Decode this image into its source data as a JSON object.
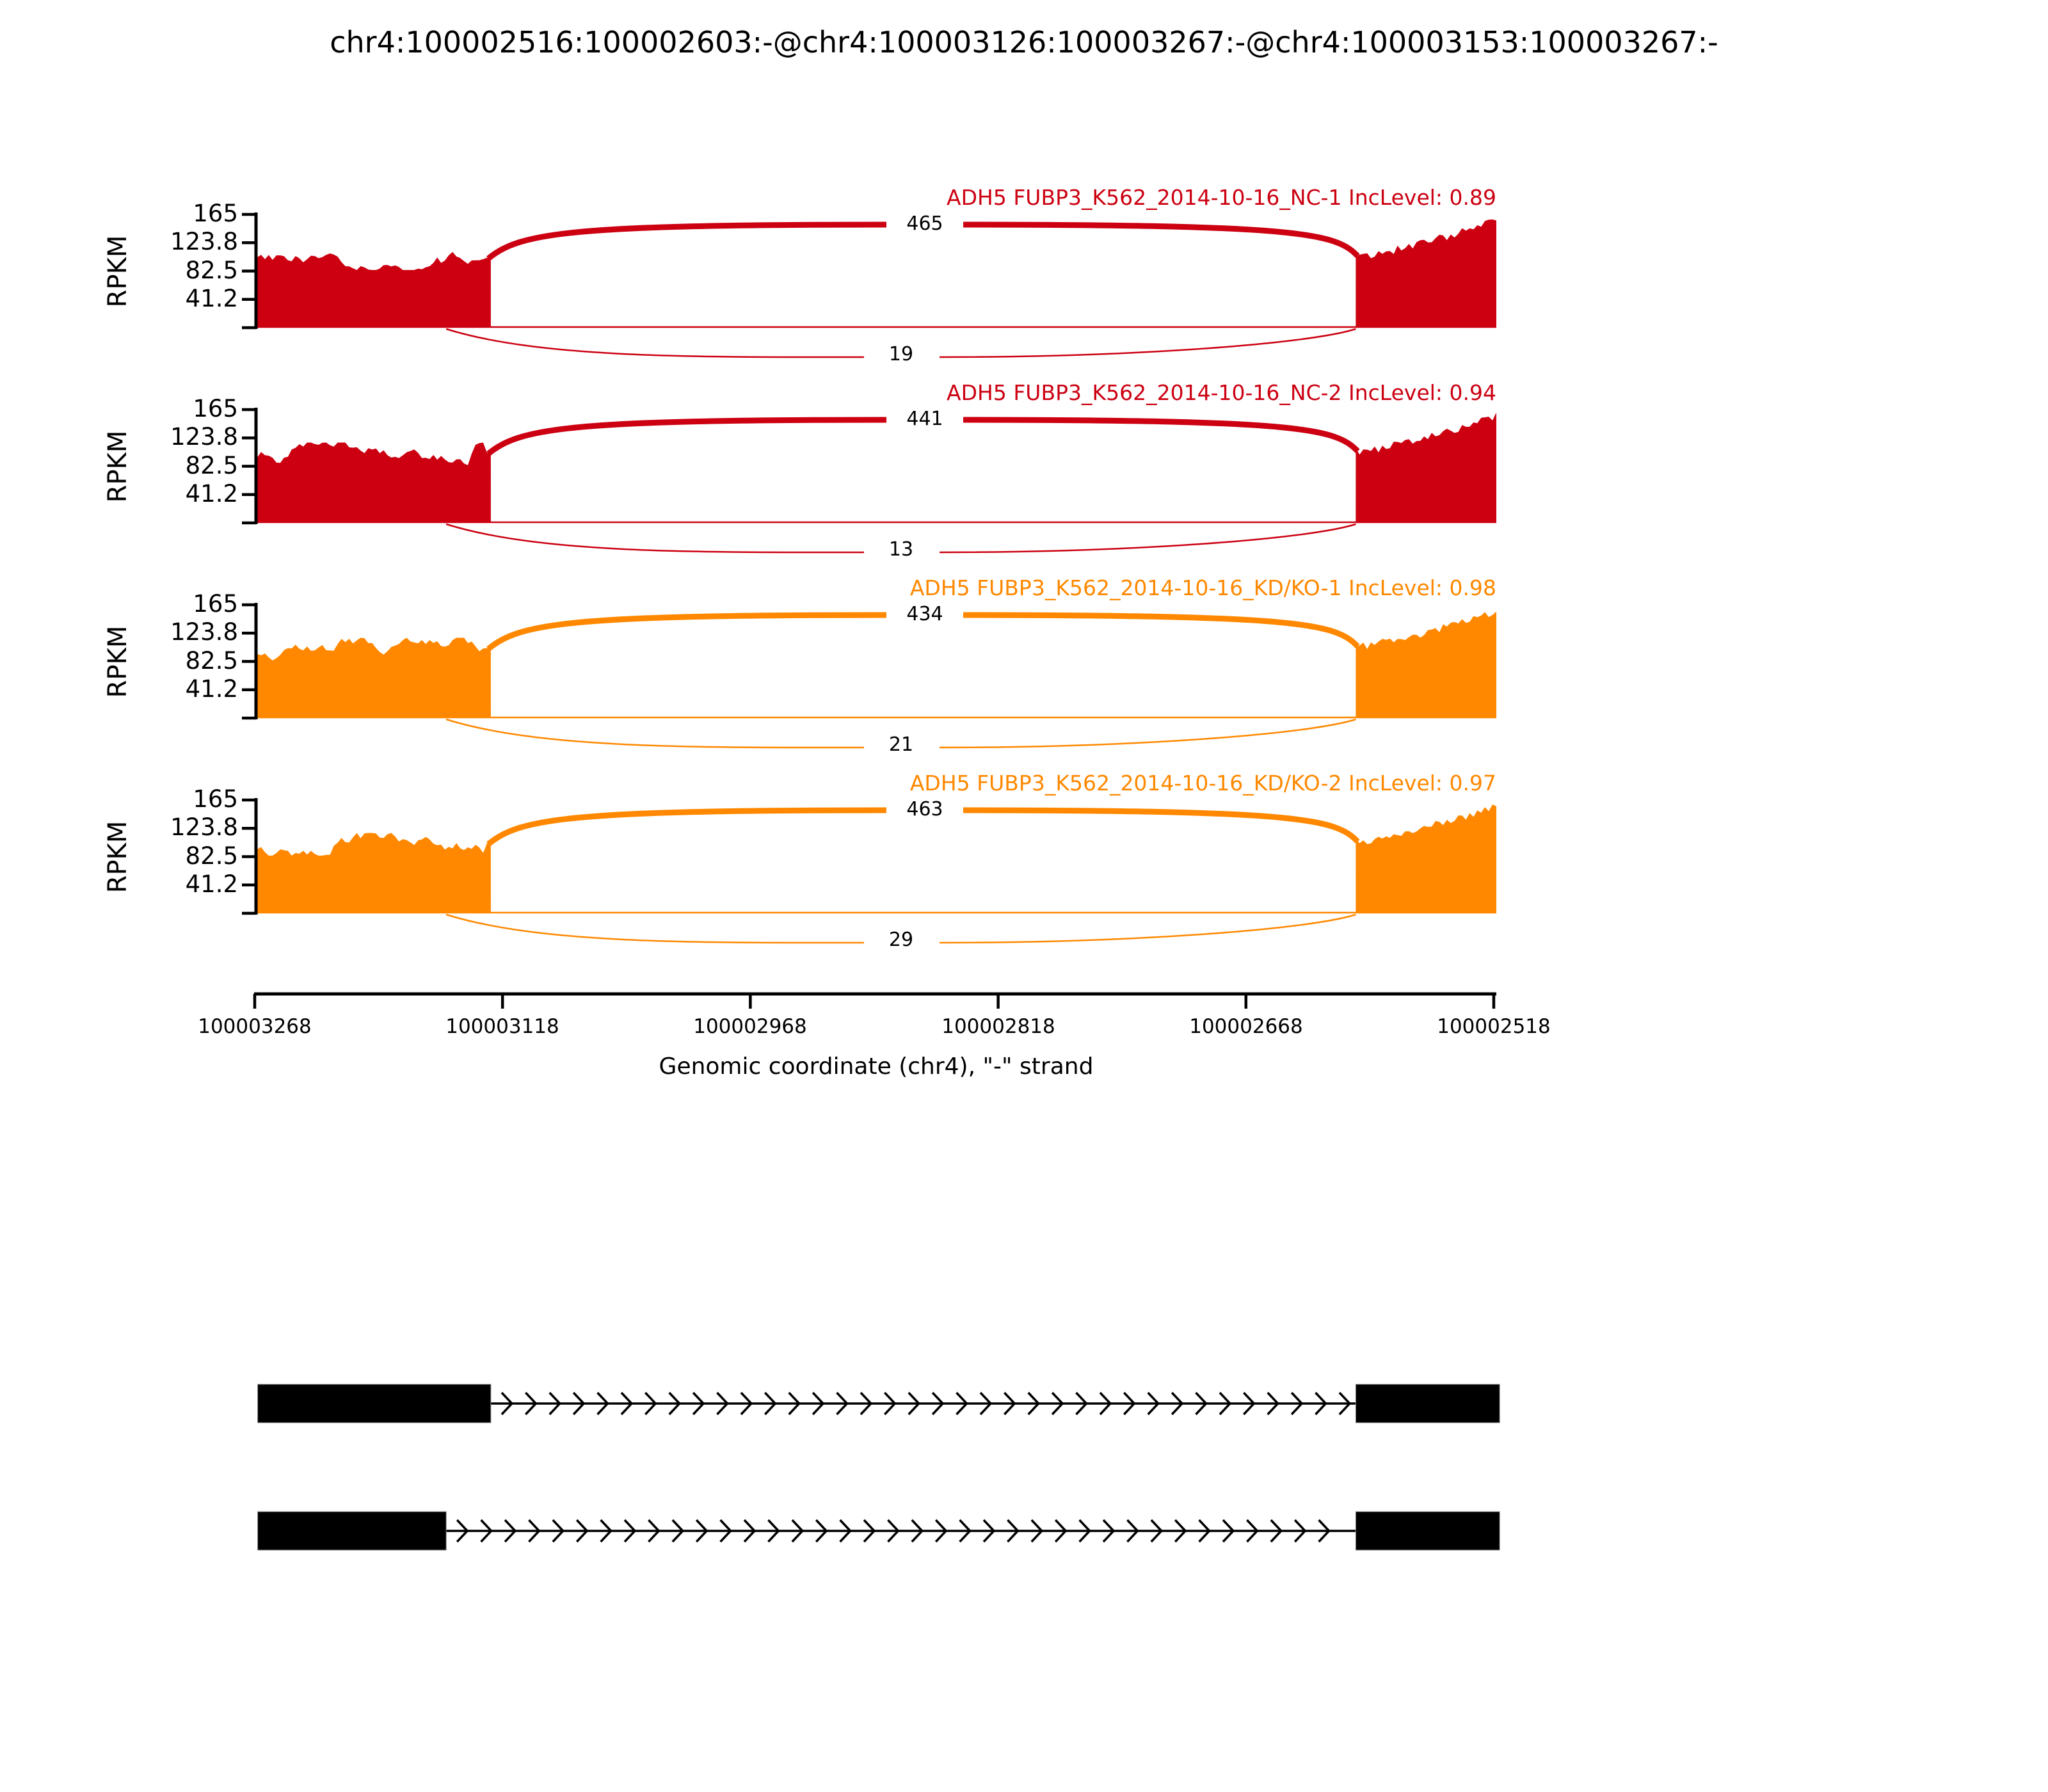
{
  "title": "chr4:100002516:100002603:-@chr4:100003126:100003267:-@chr4:100003153:100003267:-",
  "chart_data": {
    "type": "sashimi",
    "title": "chr4:100002516:100002603:-@chr4:100003126:100003267:-@chr4:100003153:100003267:-",
    "ylabel": "RPKM",
    "y_ticks": [
      165,
      123.8,
      82.5,
      41.2
    ],
    "y_max": 165,
    "xlabel": "Genomic coordinate (chr4), \"-\" strand",
    "x_tick_labels": [
      "100003268",
      "100003118",
      "100002968",
      "100002818",
      "100002668",
      "100002518"
    ],
    "x_range_bp": [
      100003268,
      100002518
    ],
    "strand": "-",
    "colors": {
      "negative_control": "#CC0011",
      "knockdown": "#FF8800",
      "exon": "#000000"
    },
    "tracks": [
      {
        "label": "ADH5 FUBP3_K562_2014-10-16_NC-1 IncLevel: 0.89",
        "inc_level": 0.89,
        "color": "#CC0011",
        "inclusion_junction_reads": 465,
        "skipping_junction_reads": 19,
        "left_exon_mean_rpkm": 100,
        "right_exon_max_rpkm": 160
      },
      {
        "label": "ADH5 FUBP3_K562_2014-10-16_NC-2 IncLevel: 0.94",
        "inc_level": 0.94,
        "color": "#CC0011",
        "inclusion_junction_reads": 441,
        "skipping_junction_reads": 13,
        "left_exon_mean_rpkm": 100,
        "right_exon_max_rpkm": 160
      },
      {
        "label": "ADH5 FUBP3_K562_2014-10-16_KD/KO-1 IncLevel: 0.98",
        "inc_level": 0.98,
        "color": "#FF8800",
        "inclusion_junction_reads": 434,
        "skipping_junction_reads": 21,
        "left_exon_mean_rpkm": 100,
        "right_exon_max_rpkm": 160
      },
      {
        "label": "ADH5 FUBP3_K562_2014-10-16_KD/KO-2 IncLevel: 0.97",
        "inc_level": 0.97,
        "color": "#FF8800",
        "inclusion_junction_reads": 463,
        "skipping_junction_reads": 29,
        "left_exon_mean_rpkm": 100,
        "right_exon_max_rpkm": 160
      }
    ],
    "junctions": {
      "inclusion": {
        "from_bp": 100003126,
        "to_bp": 100002603
      },
      "skipping": {
        "from_bp": 100003153,
        "to_bp": 100002603
      }
    },
    "isoforms": [
      {
        "exons_bp": [
          [
            100003267,
            100003126
          ],
          [
            100002603,
            100002516
          ]
        ]
      },
      {
        "exons_bp": [
          [
            100003267,
            100003153
          ],
          [
            100002603,
            100002516
          ]
        ]
      }
    ]
  }
}
